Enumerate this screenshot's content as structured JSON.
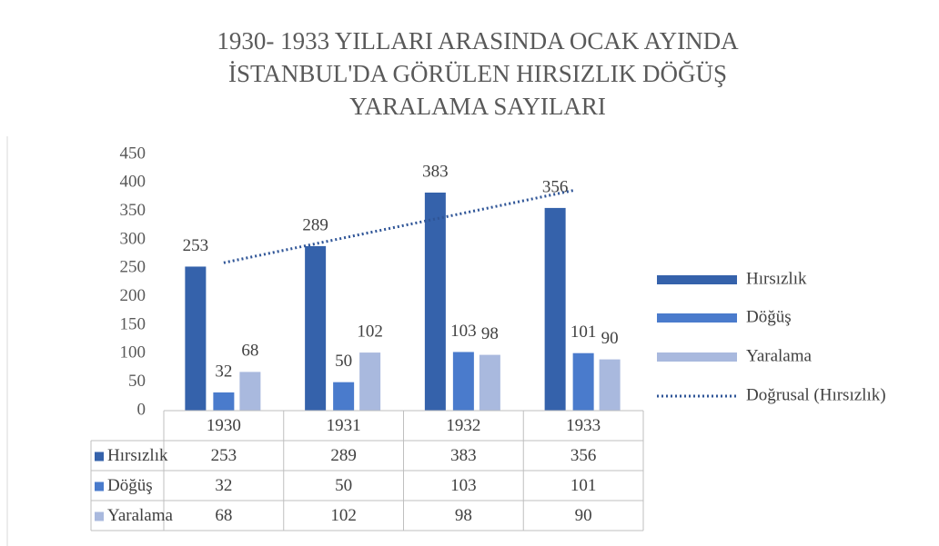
{
  "chart_data": {
    "type": "bar",
    "title": [
      "1930- 1933 YILLARI ARASINDA OCAK AYINDA",
      "İSTANBUL'DA GÖRÜLEN  HIRSIZLIK DÖĞÜŞ",
      "YARALAMA SAYILARI"
    ],
    "categories": [
      "1930",
      "1931",
      "1932",
      "1933"
    ],
    "series": [
      {
        "name": "Hırsızlık",
        "color": "#3562ab",
        "values": [
          253,
          289,
          383,
          356
        ]
      },
      {
        "name": "Döğüş",
        "color": "#4a7bcc",
        "values": [
          32,
          50,
          103,
          101
        ]
      },
      {
        "name": "Yaralama",
        "color": "#a9b9de",
        "values": [
          68,
          102,
          98,
          90
        ]
      }
    ],
    "trendline": {
      "name": "Doğrusal (Hırsızlık)",
      "series": 0,
      "color": "#2f5597"
    },
    "ylim": [
      0,
      450
    ],
    "yticks": [
      0,
      50,
      100,
      150,
      200,
      250,
      300,
      350,
      400,
      450
    ],
    "grid": false,
    "legend": "right",
    "data_table": true
  }
}
